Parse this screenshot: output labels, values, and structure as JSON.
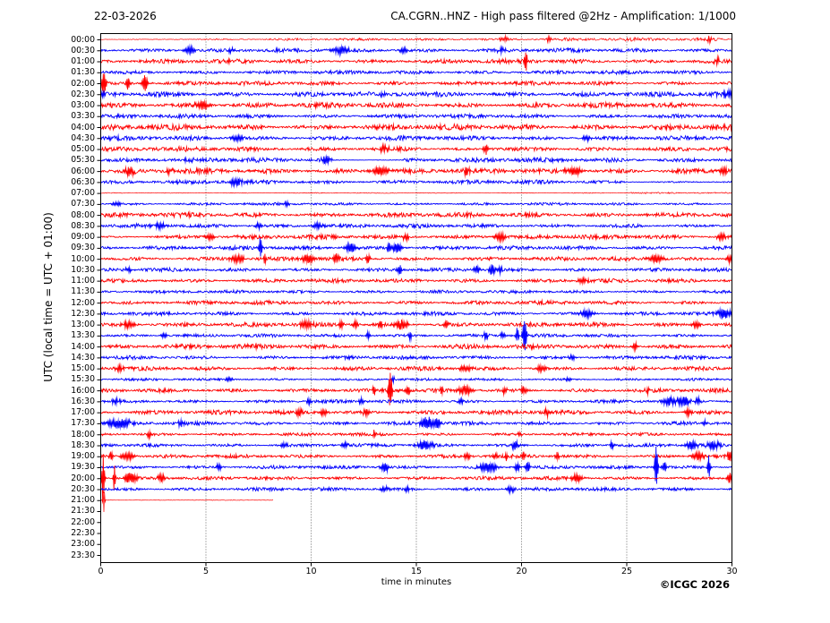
{
  "header": {
    "date": "22-03-2026",
    "title": "CA.CGRN..HNZ - High pass filtered @2Hz - Amplification: 1/1000"
  },
  "footer": {
    "copyright": "©ICGC 2026"
  },
  "chart_data": {
    "type": "line",
    "subtype": "helicorder-seismogram",
    "title": "CA.CGRN..HNZ - High pass filtered @2Hz - Amplification: 1/1000",
    "date_label": "22-03-2026",
    "xlabel": "time in minutes",
    "ylabel": "UTC (local time = UTC + 01:00)",
    "xlim": [
      0,
      30
    ],
    "x_ticks": [
      0,
      5,
      10,
      15,
      20,
      25,
      30
    ],
    "grid": "vertical-dotted",
    "minutes_per_row": 30,
    "colors": {
      "red": "#ff0000",
      "blue": "#0000ff",
      "grid": "#444444",
      "frame": "#000000"
    },
    "event_format": "[minute, amplitude_px, width_min]",
    "segment_format": "[from_min, to_min, noise_amplitude_px]",
    "rows": [
      {
        "label": "00:00",
        "color": "red",
        "amp": 1.8,
        "segments": [
          [
            0,
            3.5,
            0.35
          ],
          [
            3.5,
            8,
            0.9
          ],
          [
            8,
            16,
            1.3
          ],
          [
            16,
            30,
            1.8
          ]
        ],
        "events": [
          [
            19.2,
            4,
            0.15
          ],
          [
            21.3,
            3,
            0.1
          ],
          [
            28.9,
            3.5,
            0.12
          ]
        ]
      },
      {
        "label": "00:30",
        "color": "blue",
        "amp": 2.1,
        "events": [
          [
            4.2,
            3.5,
            0.3
          ],
          [
            6.2,
            3,
            0.2
          ],
          [
            11.4,
            3.5,
            0.4
          ],
          [
            14.4,
            3,
            0.2
          ],
          [
            19.0,
            2.5,
            0.2
          ]
        ]
      },
      {
        "label": "01:00",
        "color": "red",
        "amp": 2.3,
        "events": [
          [
            20.2,
            13,
            0.07
          ],
          [
            29.3,
            3,
            0.2
          ]
        ]
      },
      {
        "label": "01:30",
        "color": "blue",
        "amp": 2.0,
        "events": []
      },
      {
        "label": "02:00",
        "color": "red",
        "amp": 2.1,
        "events": [
          [
            0.15,
            14,
            0.1
          ],
          [
            1.3,
            7,
            0.08
          ],
          [
            2.1,
            10,
            0.12
          ]
        ]
      },
      {
        "label": "02:30",
        "color": "blue",
        "amp": 2.7,
        "events": [
          [
            29.8,
            4,
            0.25
          ]
        ]
      },
      {
        "label": "03:00",
        "color": "red",
        "amp": 2.7,
        "events": [
          [
            4.8,
            4,
            0.3
          ]
        ]
      },
      {
        "label": "03:30",
        "color": "blue",
        "amp": 2.1,
        "events": []
      },
      {
        "label": "04:00",
        "color": "red",
        "amp": 2.9,
        "events": []
      },
      {
        "label": "04:30",
        "color": "blue",
        "amp": 2.3,
        "events": [
          [
            6.5,
            3,
            0.3
          ],
          [
            23.1,
            3,
            0.2
          ]
        ]
      },
      {
        "label": "05:00",
        "color": "red",
        "amp": 2.5,
        "segments": [
          [
            0,
            15.2,
            2.5
          ],
          [
            15.2,
            18.2,
            1.1
          ],
          [
            18.2,
            30,
            2.4
          ]
        ],
        "events": [
          [
            13.5,
            3.5,
            0.25
          ],
          [
            18.3,
            5,
            0.12
          ]
        ]
      },
      {
        "label": "05:30",
        "color": "blue",
        "amp": 2.5,
        "segments": [
          [
            0,
            11.0,
            2.5
          ],
          [
            11.0,
            14.4,
            0.45
          ],
          [
            14.4,
            30,
            2.5
          ]
        ],
        "events": [
          [
            10.7,
            3.5,
            0.2
          ]
        ]
      },
      {
        "label": "06:00",
        "color": "red",
        "amp": 2.7,
        "events": [
          [
            1.4,
            4,
            0.2
          ],
          [
            3.3,
            3,
            0.15
          ],
          [
            13.3,
            4,
            0.4
          ],
          [
            17.4,
            3.5,
            0.2
          ],
          [
            22.5,
            4,
            0.4
          ],
          [
            29.6,
            4,
            0.2
          ]
        ]
      },
      {
        "label": "06:30",
        "color": "blue",
        "amp": 2.1,
        "segments": [
          [
            0,
            25,
            2.1
          ],
          [
            25,
            30,
            0.9
          ]
        ],
        "events": [
          [
            6.4,
            3.5,
            0.3
          ]
        ]
      },
      {
        "label": "07:00",
        "color": "red",
        "amp": 0.45,
        "segments": [
          [
            0,
            25,
            0.45
          ],
          [
            25,
            30,
            0.85
          ]
        ],
        "events": []
      },
      {
        "label": "07:30",
        "color": "blue",
        "amp": 1.4,
        "events": [
          [
            0.8,
            2.5,
            0.2
          ],
          [
            8.9,
            2.5,
            0.15
          ]
        ]
      },
      {
        "label": "08:00",
        "color": "red",
        "amp": 2.5,
        "events": []
      },
      {
        "label": "08:30",
        "color": "blue",
        "amp": 2.1,
        "segments": [
          [
            0,
            26,
            2.1
          ],
          [
            26,
            30,
            1.2
          ]
        ],
        "events": [
          [
            2.85,
            3,
            0.25
          ],
          [
            7.5,
            3,
            0.2
          ],
          [
            10.3,
            3,
            0.25
          ]
        ]
      },
      {
        "label": "09:00",
        "color": "red",
        "amp": 2.3,
        "segments": [
          [
            0,
            2.2,
            0.8
          ],
          [
            2.2,
            30,
            2.3
          ]
        ],
        "events": [
          [
            5.2,
            3,
            0.2
          ],
          [
            14.5,
            4,
            0.15
          ],
          [
            19.0,
            4,
            0.25
          ],
          [
            29.5,
            4,
            0.2
          ]
        ]
      },
      {
        "label": "09:30",
        "color": "blue",
        "amp": 2.1,
        "events": [
          [
            7.6,
            13,
            0.07
          ],
          [
            11.9,
            4.5,
            0.3
          ],
          [
            13.7,
            6,
            0.08
          ],
          [
            14.1,
            6,
            0.2
          ]
        ]
      },
      {
        "label": "10:00",
        "color": "red",
        "amp": 2.1,
        "events": [
          [
            6.5,
            4,
            0.35
          ],
          [
            7.8,
            8,
            0.06
          ],
          [
            9.8,
            4.5,
            0.3
          ],
          [
            11.2,
            4,
            0.12
          ],
          [
            12.7,
            5,
            0.1
          ],
          [
            26.4,
            4,
            0.4
          ],
          [
            29.9,
            4,
            0.15
          ]
        ]
      },
      {
        "label": "10:30",
        "color": "blue",
        "amp": 1.9,
        "events": [
          [
            1.3,
            2.5,
            0.2
          ],
          [
            14.2,
            6,
            0.1
          ],
          [
            17.9,
            4,
            0.15
          ],
          [
            18.6,
            5,
            0.15
          ],
          [
            19.0,
            4,
            0.1
          ]
        ]
      },
      {
        "label": "11:00",
        "color": "red",
        "amp": 2.1,
        "events": [
          [
            22.9,
            3,
            0.25
          ]
        ]
      },
      {
        "label": "11:30",
        "color": "blue",
        "amp": 1.7,
        "events": []
      },
      {
        "label": "12:00",
        "color": "red",
        "amp": 2.1,
        "events": []
      },
      {
        "label": "12:30",
        "color": "blue",
        "amp": 1.9,
        "events": [
          [
            23.1,
            4.5,
            0.3
          ],
          [
            29.6,
            5,
            0.4
          ]
        ]
      },
      {
        "label": "13:00",
        "color": "red",
        "amp": 2.3,
        "events": [
          [
            1.3,
            3.5,
            0.3
          ],
          [
            9.8,
            4,
            0.3
          ],
          [
            11.4,
            4,
            0.12
          ],
          [
            12.1,
            4,
            0.12
          ],
          [
            13.3,
            4,
            0.1
          ],
          [
            14.3,
            5,
            0.3
          ],
          [
            16.4,
            4,
            0.12
          ],
          [
            28.3,
            3.5,
            0.2
          ]
        ]
      },
      {
        "label": "13:30",
        "color": "blue",
        "amp": 1.7,
        "events": [
          [
            3.0,
            3,
            0.15
          ],
          [
            12.7,
            4,
            0.1
          ],
          [
            14.7,
            5,
            0.08
          ],
          [
            18.3,
            4,
            0.12
          ],
          [
            19.1,
            4,
            0.1
          ],
          [
            19.8,
            9,
            0.07
          ],
          [
            20.15,
            20,
            0.09
          ]
        ]
      },
      {
        "label": "14:00",
        "color": "red",
        "amp": 2.5,
        "events": [
          [
            25.4,
            4,
            0.1
          ]
        ]
      },
      {
        "label": "14:30",
        "color": "blue",
        "amp": 1.9,
        "events": [
          [
            22.4,
            3,
            0.15
          ]
        ]
      },
      {
        "label": "15:00",
        "color": "red",
        "amp": 2.1,
        "events": [
          [
            0.9,
            3,
            0.2
          ],
          [
            17.3,
            3,
            0.3
          ],
          [
            20.9,
            3.5,
            0.2
          ]
        ]
      },
      {
        "label": "15:30",
        "color": "blue",
        "amp": 1.3,
        "events": [
          [
            6.1,
            2.5,
            0.15
          ],
          [
            13.9,
            4,
            0.06
          ],
          [
            22.2,
            2.5,
            0.15
          ]
        ]
      },
      {
        "label": "16:00",
        "color": "red",
        "amp": 2.1,
        "events": [
          [
            13.0,
            4,
            0.1
          ],
          [
            13.75,
            23,
            0.09
          ],
          [
            14.6,
            5,
            0.1
          ],
          [
            16.2,
            5,
            0.08
          ],
          [
            17.3,
            5,
            0.3
          ],
          [
            19.2,
            4,
            0.12
          ],
          [
            20.1,
            4,
            0.12
          ],
          [
            26.0,
            4,
            0.12
          ]
        ]
      },
      {
        "label": "16:30",
        "color": "blue",
        "amp": 1.7,
        "events": [
          [
            0.7,
            3,
            0.15
          ],
          [
            9.9,
            3,
            0.12
          ],
          [
            12.4,
            3,
            0.12
          ],
          [
            17.1,
            3,
            0.12
          ],
          [
            27.0,
            4,
            0.3
          ],
          [
            27.7,
            5,
            0.3
          ],
          [
            28.4,
            4,
            0.15
          ]
        ]
      },
      {
        "label": "17:00",
        "color": "red",
        "amp": 2.3,
        "events": [
          [
            9.4,
            3.5,
            0.2
          ],
          [
            10.6,
            3.5,
            0.2
          ],
          [
            12.6,
            3.5,
            0.15
          ],
          [
            21.2,
            4,
            0.15
          ],
          [
            27.9,
            4,
            0.15
          ]
        ]
      },
      {
        "label": "17:30",
        "color": "blue",
        "amp": 1.9,
        "events": [
          [
            0.9,
            5,
            0.5
          ],
          [
            3.8,
            3,
            0.15
          ],
          [
            15.5,
            7,
            0.3
          ],
          [
            16.0,
            6,
            0.15
          ],
          [
            28.7,
            3,
            0.15
          ]
        ]
      },
      {
        "label": "18:00",
        "color": "red",
        "amp": 1.6,
        "events": [
          [
            2.3,
            3,
            0.12
          ],
          [
            13.0,
            5,
            0.06
          ],
          [
            19.9,
            3,
            0.1
          ]
        ]
      },
      {
        "label": "18:30",
        "color": "blue",
        "amp": 1.8,
        "events": [
          [
            8.7,
            3,
            0.15
          ],
          [
            11.6,
            3,
            0.15
          ],
          [
            15.4,
            6,
            0.3
          ],
          [
            19.7,
            5,
            0.15
          ],
          [
            24.3,
            5,
            0.08
          ],
          [
            28.1,
            5,
            0.25
          ],
          [
            29.1,
            5,
            0.3
          ]
        ]
      },
      {
        "label": "19:00",
        "color": "red",
        "amp": 1.9,
        "events": [
          [
            0.5,
            6,
            0.08
          ],
          [
            1.3,
            4,
            0.3
          ],
          [
            17.4,
            4,
            0.12
          ],
          [
            18.8,
            4,
            0.12
          ],
          [
            19.3,
            5,
            0.08
          ],
          [
            20.1,
            4,
            0.1
          ],
          [
            21.7,
            4,
            0.1
          ],
          [
            28.4,
            4,
            0.3
          ],
          [
            29.9,
            5,
            0.12
          ]
        ]
      },
      {
        "label": "19:30",
        "color": "blue",
        "amp": 1.8,
        "events": [
          [
            5.6,
            3,
            0.15
          ],
          [
            13.5,
            5,
            0.2
          ],
          [
            18.4,
            5,
            0.4
          ],
          [
            19.8,
            5,
            0.12
          ],
          [
            20.3,
            7,
            0.08
          ],
          [
            26.4,
            28,
            0.07
          ],
          [
            26.8,
            6,
            0.1
          ],
          [
            28.9,
            13,
            0.06
          ]
        ]
      },
      {
        "label": "20:00",
        "color": "red",
        "amp": 1.8,
        "events": [
          [
            0.12,
            33,
            0.06
          ],
          [
            0.65,
            17,
            0.05
          ],
          [
            1.4,
            6,
            0.3
          ],
          [
            2.9,
            4,
            0.2
          ],
          [
            22.6,
            4,
            0.3
          ],
          [
            29.9,
            6,
            0.1
          ]
        ]
      },
      {
        "label": "20:30",
        "color": "blue",
        "amp": 1.8,
        "events": [
          [
            13.5,
            3,
            0.2
          ],
          [
            14.6,
            3,
            0.15
          ],
          [
            19.5,
            3,
            0.2
          ]
        ]
      },
      {
        "label": "21:00",
        "color": "red",
        "amp": 0.3,
        "end": 8.2,
        "events": [
          [
            0.15,
            14,
            0.05
          ]
        ]
      },
      {
        "label": "21:30",
        "color": "blue",
        "absent": true
      },
      {
        "label": "22:00",
        "color": "red",
        "absent": true
      },
      {
        "label": "22:30",
        "color": "blue",
        "absent": true
      },
      {
        "label": "23:00",
        "color": "red",
        "absent": true
      },
      {
        "label": "23:30",
        "color": "blue",
        "absent": true
      }
    ]
  }
}
